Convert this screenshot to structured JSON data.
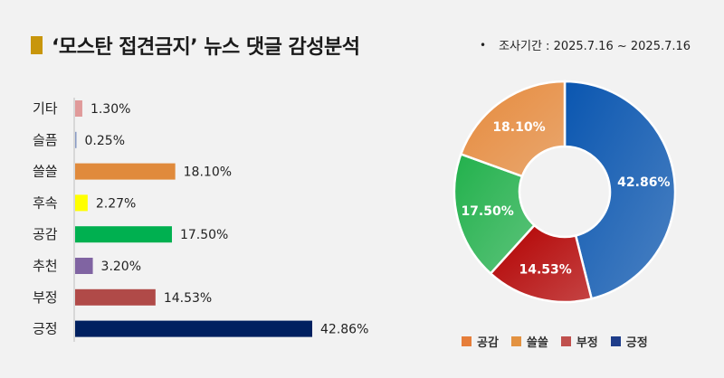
{
  "title": "‘모스탄 접견금지’ 뉴스 댓글 감성분석",
  "period": "조사기간 : 2025.7.16 ~ 2025.7.16",
  "colors": {
    "accent": "#c8960c"
  },
  "chart_data": [
    {
      "type": "bar",
      "orientation": "horizontal",
      "categories": [
        "기타",
        "슬픔",
        "쓸쓸",
        "후속",
        "공감",
        "추천",
        "부정",
        "긍정"
      ],
      "values": [
        1.3,
        0.25,
        18.1,
        2.27,
        17.5,
        3.2,
        14.53,
        42.86
      ],
      "value_labels": [
        "1.30%",
        "0.25%",
        "18.10%",
        "2.27%",
        "17.50%",
        "3.20%",
        "14.53%",
        "42.86%"
      ],
      "colors": [
        "#e09a9a",
        "#8a9bc4",
        "#e08a3c",
        "#ffff00",
        "#00b050",
        "#8064a2",
        "#b04a48",
        "#002060"
      ],
      "xlim": [
        0,
        50
      ]
    },
    {
      "type": "pie",
      "donut": true,
      "labels": [
        "긍정",
        "부정",
        "공감",
        "쓸쓸"
      ],
      "values": [
        42.86,
        14.53,
        17.5,
        18.1
      ],
      "value_labels": [
        "42.86%",
        "14.53%",
        "17.50%",
        "18.10%"
      ],
      "colors": [
        "#0a56b0",
        "#b30000",
        "#22b14c",
        "#e68a3c"
      ],
      "legend": [
        {
          "label": "공감",
          "color": "#e67e3a"
        },
        {
          "label": "쓸쓸",
          "color": "#e39241"
        },
        {
          "label": "부정",
          "color": "#c0504d"
        },
        {
          "label": "긍정",
          "color": "#1f3d8a"
        }
      ],
      "legend_position": "bottom"
    }
  ]
}
